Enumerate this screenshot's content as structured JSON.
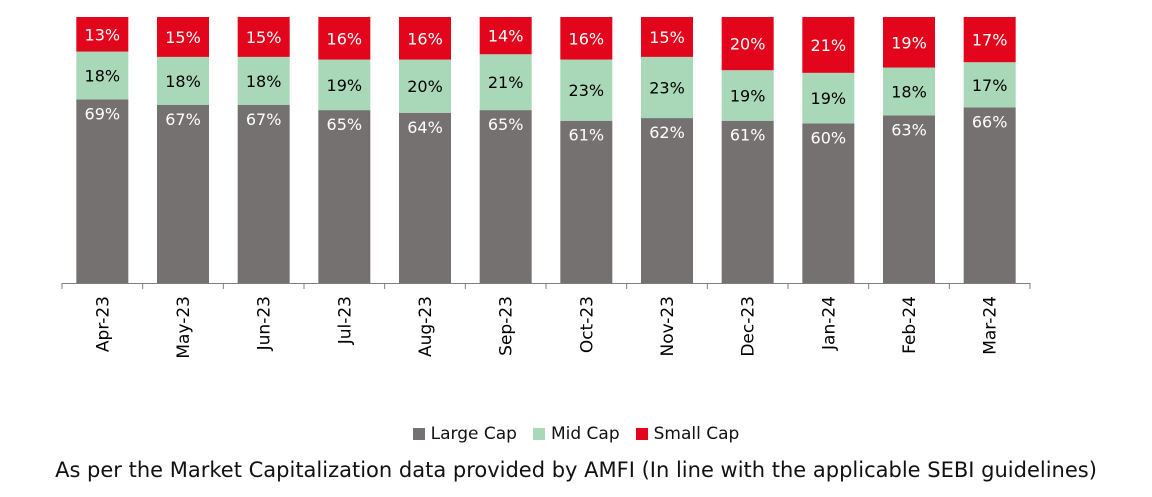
{
  "chart_data": {
    "type": "bar",
    "stacked": true,
    "percent": true,
    "categories": [
      "Apr-23",
      "May-23",
      "Jun-23",
      "Jul-23",
      "Aug-23",
      "Sep-23",
      "Oct-23",
      "Nov-23",
      "Dec-23",
      "Jan-24",
      "Feb-24",
      "Mar-24"
    ],
    "series": [
      {
        "name": "Large Cap",
        "color": "#767171",
        "label_color": "#ffffff",
        "values": [
          69,
          67,
          67,
          65,
          64,
          65,
          61,
          62,
          61,
          60,
          63,
          66
        ]
      },
      {
        "name": "Mid Cap",
        "color": "#a9d8b8",
        "label_color": "#000000",
        "values": [
          18,
          18,
          18,
          19,
          20,
          21,
          23,
          23,
          19,
          19,
          18,
          17
        ]
      },
      {
        "name": "Small Cap",
        "color": "#e3051b",
        "label_color": "#ffffff",
        "values": [
          13,
          15,
          15,
          16,
          16,
          14,
          16,
          15,
          20,
          21,
          19,
          17
        ]
      }
    ],
    "data_label_suffix": "%",
    "legend_position": "bottom",
    "grid": false
  },
  "caption": "As per the Market Capitalization data provided by AMFI (In line with the applicable SEBI guidelines)"
}
